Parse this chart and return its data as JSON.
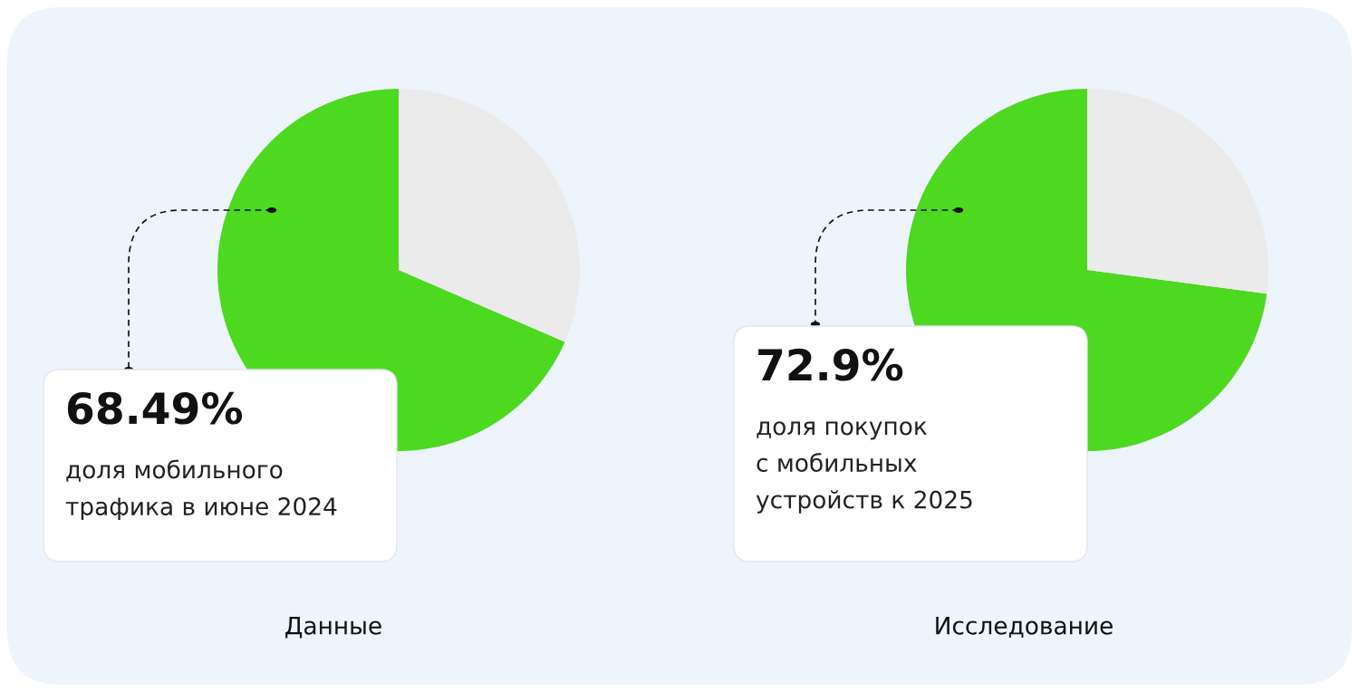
{
  "chart_data": [
    {
      "type": "pie",
      "categories": [
        null,
        null
      ],
      "values": [
        68.49,
        31.51
      ],
      "colors": [
        "#4cd920",
        "#ebebeb"
      ],
      "value_labels": [
        "68.49%",
        null
      ],
      "annotations": [
        "доля мобильного\nтрафика в июне 2024",
        "Данные"
      ]
    },
    {
      "type": "pie",
      "categories": [
        null,
        null
      ],
      "values": [
        72.9,
        27.1
      ],
      "colors": [
        "#4cd920",
        "#ebebeb"
      ],
      "value_labels": [
        "72.9%",
        null
      ],
      "annotations": [
        "доля покупок\nс мобильных\nустройств к 2025",
        "Исследование"
      ]
    }
  ]
}
